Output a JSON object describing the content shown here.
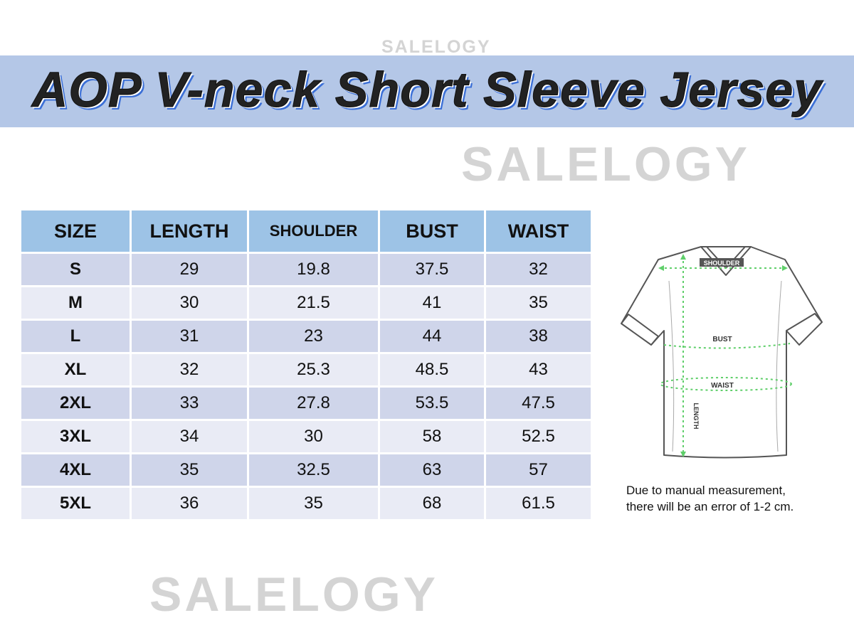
{
  "watermark": "SALELOGY",
  "title": "AOP V-neck Short Sleeve Jersey",
  "colors": {
    "title_band": "#b4c7e7",
    "header": "#9dc3e6",
    "row_odd": "#cfd5ea",
    "row_even": "#e9ebf5",
    "measure_lines": "#5fcf6a"
  },
  "table": {
    "headers": [
      "SIZE",
      "LENGTH",
      "SHOULDER",
      "BUST",
      "WAIST"
    ],
    "rows": [
      [
        "S",
        "29",
        "19.8",
        "37.5",
        "32"
      ],
      [
        "M",
        "30",
        "21.5",
        "41",
        "35"
      ],
      [
        "L",
        "31",
        "23",
        "44",
        "38"
      ],
      [
        "XL",
        "32",
        "25.3",
        "48.5",
        "43"
      ],
      [
        "2XL",
        "33",
        "27.8",
        "53.5",
        "47.5"
      ],
      [
        "3XL",
        "34",
        "30",
        "58",
        "52.5"
      ],
      [
        "4XL",
        "35",
        "32.5",
        "63",
        "57"
      ],
      [
        "5XL",
        "36",
        "35",
        "68",
        "61.5"
      ]
    ]
  },
  "diagram": {
    "labels": {
      "shoulder": "SHOULDER",
      "bust": "BUST",
      "waist": "WAIST",
      "length": "LENGTH"
    }
  },
  "note": {
    "line1": "Due to manual  measurement,",
    "line2": "there will be an error of 1-2 cm."
  }
}
